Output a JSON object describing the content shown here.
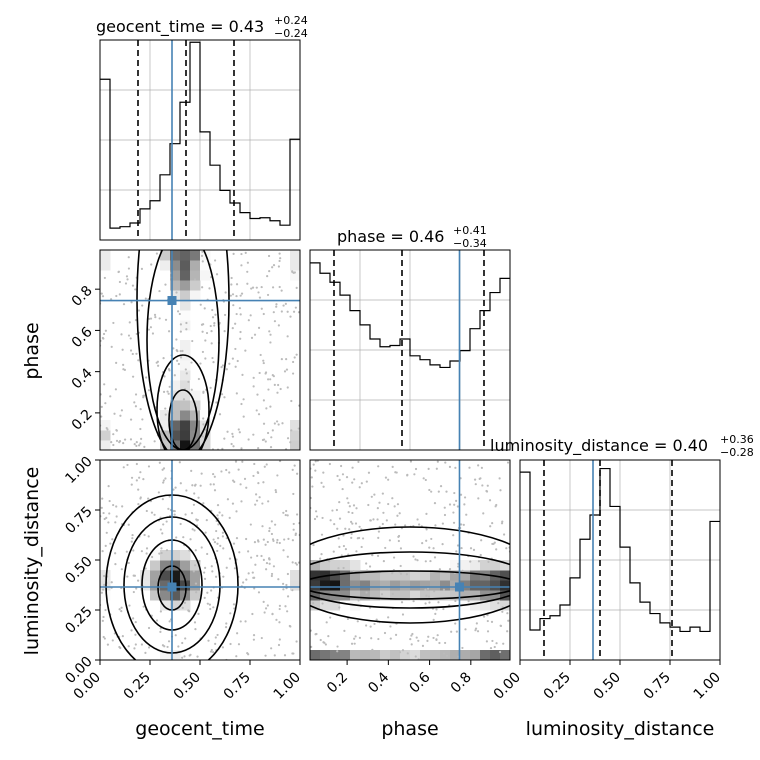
{
  "chart_data": {
    "type": "corner",
    "parameters": [
      "geocent_time",
      "phase",
      "luminosity_distance"
    ],
    "titles": [
      {
        "label": "geocent_time = 0.43",
        "plus": "+0.24",
        "minus": "−0.24"
      },
      {
        "label": "phase = 0.46",
        "plus": "+0.41",
        "minus": "−0.34"
      },
      {
        "label": "luminosity_distance = 0.40",
        "plus": "+0.36",
        "minus": "−0.28"
      }
    ],
    "truths": {
      "geocent_time": 0.36,
      "phase": 0.745,
      "luminosity_distance": 0.365
    },
    "colors": {
      "truth": "#4682b4",
      "hist": "#000000",
      "grid": "#b0b0b0"
    },
    "grid": true,
    "ranges": {
      "geocent_time": [
        0,
        1
      ],
      "phase": [
        0.02,
        0.99
      ],
      "luminosity_distance": [
        0,
        1
      ]
    },
    "histograms": [
      {
        "param": "geocent_time",
        "edges_step": 0.05,
        "values": [
          2.17,
          0.16,
          0.18,
          0.23,
          0.42,
          0.53,
          0.88,
          1.3,
          1.86,
          2.67,
          1.46,
          1.01,
          0.67,
          0.5,
          0.37,
          0.29,
          0.3,
          0.26,
          0.2,
          1.36
        ],
        "quantiles": [
          0.19,
          0.43,
          0.67
        ],
        "ymax": 2.7
      },
      {
        "param": "phase",
        "edges_step": 0.0485,
        "values": [
          1.45,
          1.37,
          1.3,
          1.2,
          1.08,
          0.97,
          0.86,
          0.8,
          0.81,
          0.86,
          0.73,
          0.7,
          0.66,
          0.64,
          0.69,
          0.77,
          0.94,
          1.08,
          1.22,
          1.33
        ],
        "quantiles": [
          0.12,
          0.46,
          0.87
        ],
        "ymax": 1.55
      },
      {
        "param": "luminosity_distance",
        "edges_step": 0.05,
        "values": [
          2.63,
          0.42,
          0.58,
          0.62,
          0.77,
          1.15,
          1.69,
          2.03,
          2.68,
          2.15,
          1.58,
          1.08,
          0.81,
          0.65,
          0.52,
          0.46,
          0.4,
          0.46,
          0.4,
          1.94
        ],
        "quantiles": [
          0.12,
          0.4,
          0.76
        ],
        "ymax": 2.8
      }
    ],
    "ticks": {
      "geocent_time": [
        "0.00",
        "0.25",
        "0.50",
        "0.75",
        "1.00"
      ],
      "phase": [
        "0.2",
        "0.4",
        "0.6",
        "0.8"
      ],
      "luminosity_distance": [
        "0.00",
        "0.25",
        "0.50",
        "0.75",
        "1.00"
      ]
    },
    "xlabels": [
      "geocent_time",
      "phase",
      "luminosity_distance"
    ],
    "ylabels": [
      "phase",
      "luminosity_distance"
    ]
  }
}
